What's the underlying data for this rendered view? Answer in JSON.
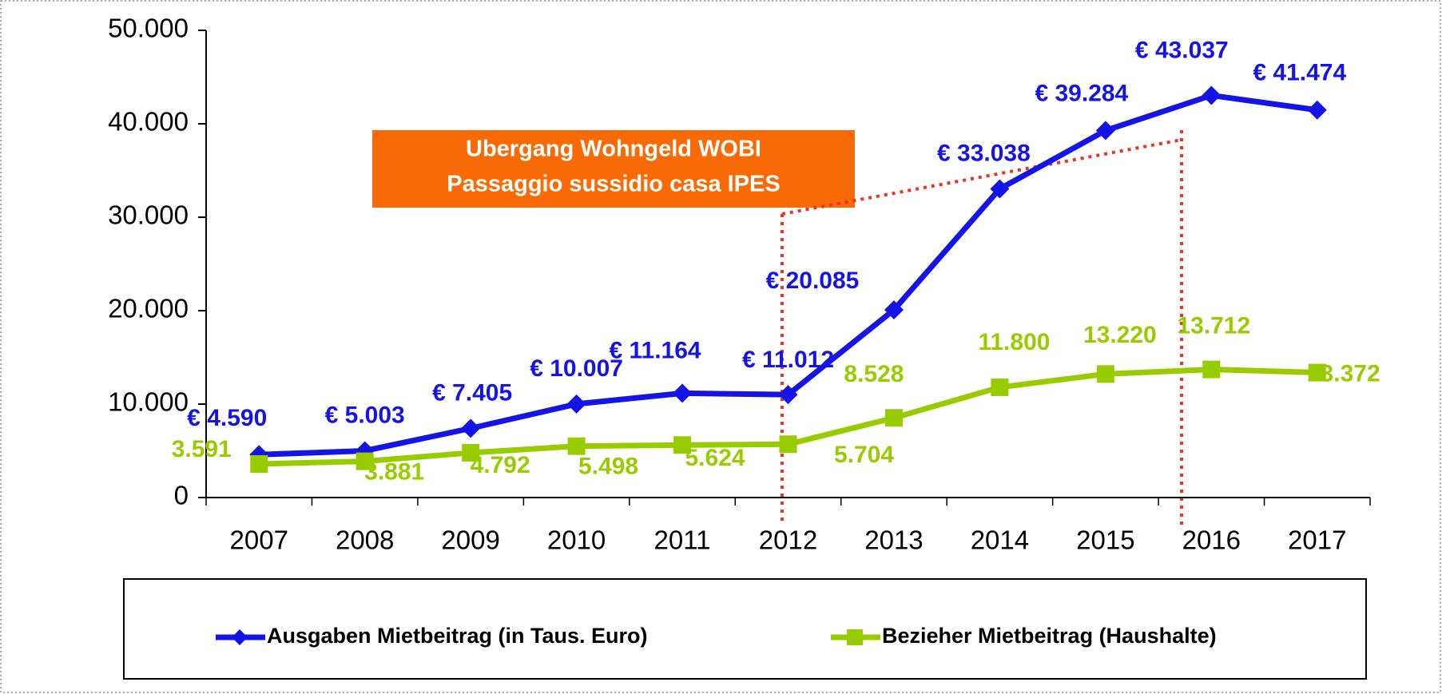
{
  "chart_data": {
    "type": "line",
    "categories": [
      "2007",
      "2008",
      "2009",
      "2010",
      "2011",
      "2012",
      "2013",
      "2014",
      "2015",
      "2016",
      "2017"
    ],
    "series": [
      {
        "name": "Ausgaben Mietbeitrag (in Taus. Euro)",
        "color": "#1414e6",
        "values": [
          4590,
          5003,
          7405,
          10007,
          11164,
          11012,
          20085,
          33038,
          39284,
          43037,
          41474
        ],
        "value_labels": [
          "€ 4.590",
          "€ 5.003",
          "€ 7.405",
          "€ 10.007",
          "€ 11.164",
          "€ 11.012",
          "€ 20.085",
          "€ 33.038",
          "€ 39.284",
          "€ 43.037",
          "€ 41.474"
        ]
      },
      {
        "name": "Bezieher Mietbeitrag (Haushalte)",
        "color": "#99cc00",
        "values": [
          3591,
          3881,
          4792,
          5498,
          5624,
          5704,
          8528,
          11800,
          13220,
          13712,
          13372
        ],
        "value_labels": [
          "3.591",
          "3.881",
          "4.792",
          "5.498",
          "5.624",
          "5.704",
          "8.528",
          "11.800",
          "13.220",
          "13.712",
          "13.372"
        ]
      }
    ],
    "ylim": [
      0,
      50000
    ],
    "yticks": [
      0,
      {
        "value": 10000,
        "label": "10.000"
      },
      {
        "value": 20000,
        "label": "20.000"
      },
      {
        "value": 30000,
        "label": "30.000"
      },
      {
        "value": 40000,
        "label": "40.000"
      },
      {
        "value": 50000,
        "label": "50.000"
      }
    ],
    "annotation": [
      "Ubergang Wohngeld WOBI",
      "Passaggio sussidio casa IPES"
    ],
    "legend": "bottom"
  }
}
